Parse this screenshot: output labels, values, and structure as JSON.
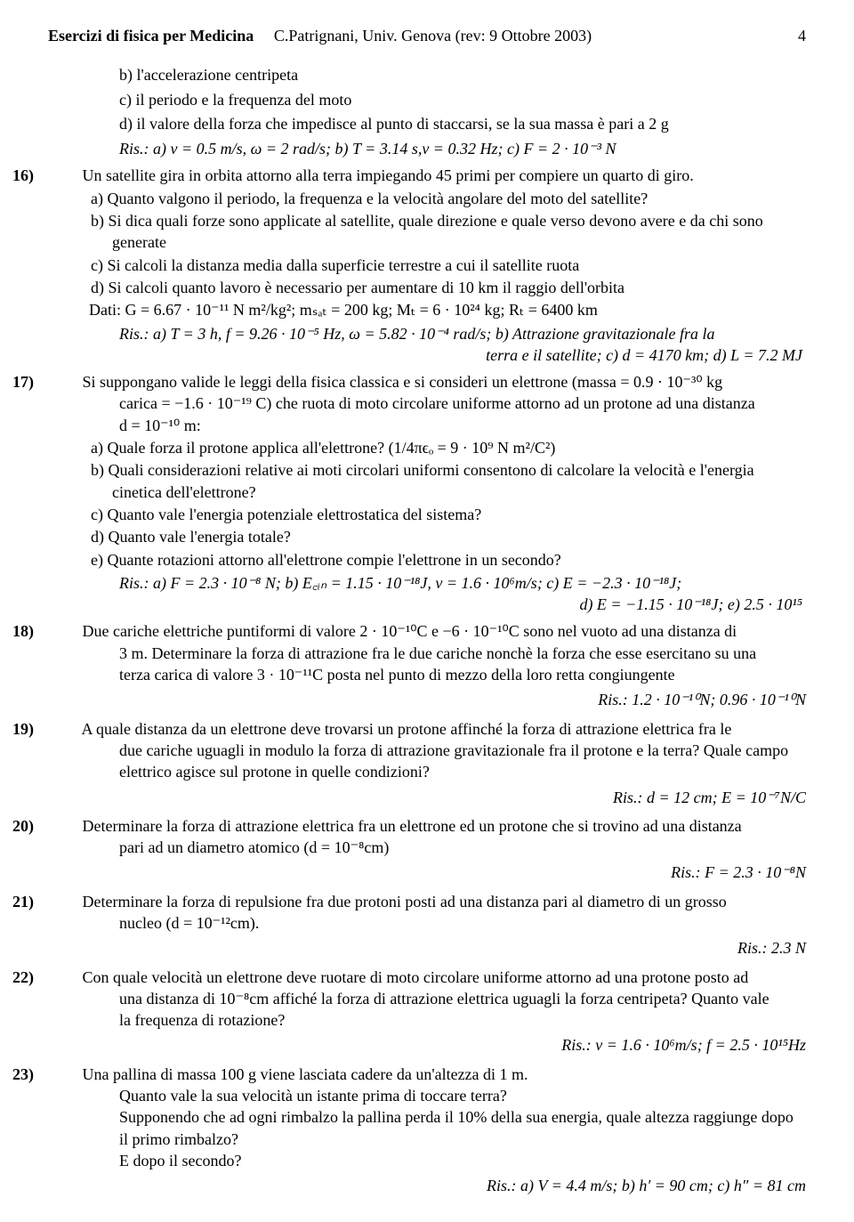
{
  "header": {
    "left": "Esercizi di fisica per Medicina",
    "center": "C.Patrignani, Univ. Genova (rev: 9 Ottobre 2003)",
    "page": "4"
  },
  "top_sub": {
    "b": "b) l'accelerazione centripeta",
    "c": "c) il periodo e la frequenza del moto",
    "d": "d) il valore della forza che impedisce al punto di staccarsi, se la sua massa è pari a 2 g"
  },
  "top_ris": "Ris.:   a) v = 0.5 m/s, ω = 2 rad/s;  b) T = 3.14 s,ν = 0.32 Hz;  c) F = 2 · 10⁻³ N",
  "ex16": {
    "num": "16)",
    "text": "Un satellite gira in orbita attorno alla terra impiegando 45 primi per compiere un quarto di giro.",
    "a": "a) Quanto valgono il periodo, la frequenza e la velocità angolare del moto del satellite?",
    "b": "b) Si dica quali forze sono applicate al satellite, quale direzione e quale verso devono avere e da chi sono generate",
    "c": "c) Si calcoli la distanza media dalla superficie terrestre a cui il satellite ruota",
    "d": "d) Si calcoli quanto lavoro è necessario per aumentare di 10 km il raggio dell'orbita",
    "dati": "Dati: G = 6.67 · 10⁻¹¹ N m²/kg²;  mₛₐₜ = 200 kg;  Mₜ = 6 · 10²⁴ kg;  Rₜ = 6400 km",
    "ris1": "Ris.:   a) T = 3 h, f = 9.26 · 10⁻⁵ Hz, ω = 5.82 · 10⁻⁴ rad/s;  b) Attrazione gravitazionale fra la",
    "ris2": "terra e il satellite;  c) d = 4170 km;  d) L = 7.2 MJ"
  },
  "ex17": {
    "num": "17)",
    "text1": "Si suppongano valide le leggi della fisica classica e si consideri un elettrone (massa = 0.9 · 10⁻³⁰ kg",
    "text2": "carica = −1.6 · 10⁻¹⁹ C) che ruota di moto circolare uniforme attorno ad un protone ad una distanza",
    "text3": "d = 10⁻¹⁰ m:",
    "a": "a) Quale forza il protone applica all'elettrone? (1/4πϵₒ = 9 · 10⁹ N m²/C²)",
    "b": "b) Quali considerazioni relative ai moti circolari uniformi consentono di calcolare la velocità e l'energia cinetica dell'elettrone?",
    "c": "c) Quanto vale l'energia potenziale elettrostatica del sistema?",
    "d": "d) Quanto vale l'energia totale?",
    "e": "e) Quante rotazioni attorno all'elettrone compie l'elettrone in un secondo?",
    "ris1": "Ris.:   a) F = 2.3 · 10⁻⁸ N;  b) E꜀ᵢₙ = 1.15 · 10⁻¹⁸J, v = 1.6 · 10⁶m/s;  c) E = −2.3 · 10⁻¹⁸J;",
    "ris2": "d) E = −1.15 · 10⁻¹⁸J;  e) 2.5 · 10¹⁵"
  },
  "ex18": {
    "num": "18)",
    "text1": "Due cariche elettriche puntiformi di valore 2 · 10⁻¹⁰C e −6 · 10⁻¹⁰C sono nel vuoto ad una distanza di",
    "text2": "3 m.  Determinare la forza di attrazione fra le due cariche nonchè la forza che esse esercitano su una",
    "text3": "terza carica di valore 3 · 10⁻¹¹C posta nel punto di mezzo della loro retta congiungente",
    "ris": "Ris.:  1.2 · 10⁻¹⁰N;  0.96 · 10⁻¹⁰N"
  },
  "ex19": {
    "num": "19)",
    "text1": "A quale distanza da un elettrone deve trovarsi un protone affinché la forza di attrazione elettrica fra le",
    "text2": "due cariche uguagli in modulo la forza di attrazione gravitazionale fra il protone e la terra? Quale campo",
    "text3": "elettrico agisce sul protone in quelle condizioni?",
    "ris": "Ris.:   d = 12 cm;  E = 10⁻⁷N/C"
  },
  "ex20": {
    "num": "20)",
    "text1": "Determinare la forza di attrazione elettrica fra un elettrone ed un protone che si trovino ad una distanza",
    "text2": "pari ad un diametro atomico (d = 10⁻⁸cm)",
    "ris": "Ris.:   F = 2.3 · 10⁻⁸N"
  },
  "ex21": {
    "num": "21)",
    "text1": "Determinare la forza di repulsione fra due protoni posti ad una distanza pari al diametro di un grosso",
    "text2": "nucleo (d = 10⁻¹²cm).",
    "ris": "Ris.:   2.3 N"
  },
  "ex22": {
    "num": "22)",
    "text1": "Con quale velocità un elettrone deve ruotare di moto circolare uniforme attorno ad una protone posto ad",
    "text2": "una distanza di 10⁻⁸cm affiché la forza di attrazione elettrica uguagli la forza centripeta? Quanto vale",
    "text3": "la frequenza di rotazione?",
    "ris": "Ris.:   v = 1.6 · 10⁶m/s; f = 2.5 · 10¹⁵Hz"
  },
  "ex23": {
    "num": "23)",
    "text1": "Una pallina di massa 100 g viene lasciata cadere da un'altezza di 1 m.",
    "text2": "Quanto vale la sua velocità un istante prima di toccare terra?",
    "text3": "Supponendo che ad ogni rimbalzo la pallina perda il 10% della sua energia, quale altezza raggiunge dopo",
    "text4": "il primo rimbalzo?",
    "text5": "E dopo il secondo?",
    "ris": "Ris.:   a) V = 4.4 m/s;  b) h′ = 90 cm;  c) h″ = 81 cm"
  }
}
